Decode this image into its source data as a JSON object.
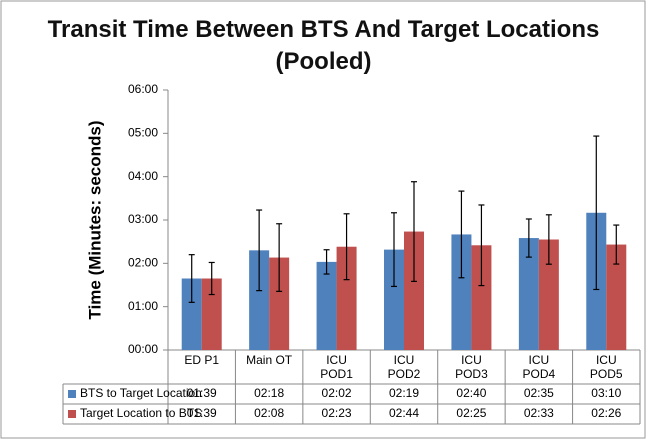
{
  "chart_data": {
    "type": "bar",
    "title": "Transit Time Between BTS And Target Locations\n(Pooled)",
    "y_label": "Time (Minutes: seconds)",
    "categories": [
      "ED P1",
      "Main OT",
      "ICU\nPOD1",
      "ICU\nPOD2",
      "ICU\nPOD3",
      "ICU\nPOD4",
      "ICU\nPOD5"
    ],
    "series": [
      {
        "name": "BTS to Target Location",
        "color": "#4f81bd",
        "values": [
          1.65,
          2.3,
          2.0333,
          2.3167,
          2.6667,
          2.5833,
          3.1667
        ],
        "value_labels": [
          "01:39",
          "02:18",
          "02:02",
          "02:19",
          "02:40",
          "02:35",
          "03:10"
        ],
        "errors": [
          0.55,
          0.93,
          0.28,
          0.85,
          1.0,
          0.44,
          1.77
        ]
      },
      {
        "name": "Target Location to BTS",
        "color": "#c0504d",
        "values": [
          1.65,
          2.1333,
          2.3833,
          2.7333,
          2.4167,
          2.55,
          2.4333
        ],
        "value_labels": [
          "01:39",
          "02:08",
          "02:23",
          "02:44",
          "02:25",
          "02:33",
          "02:26"
        ],
        "errors": [
          0.37,
          0.78,
          0.76,
          1.15,
          0.93,
          0.57,
          0.45
        ]
      }
    ],
    "ylim": [
      0,
      6
    ],
    "yticks": [
      {
        "value": 0,
        "label": "00:00"
      },
      {
        "value": 1,
        "label": "01:00"
      },
      {
        "value": 2,
        "label": "02:00"
      },
      {
        "value": 3,
        "label": "03:00"
      },
      {
        "value": 4,
        "label": "04:00"
      },
      {
        "value": 5,
        "label": "05:00"
      },
      {
        "value": 6,
        "label": "06:00"
      }
    ],
    "grid": false
  }
}
